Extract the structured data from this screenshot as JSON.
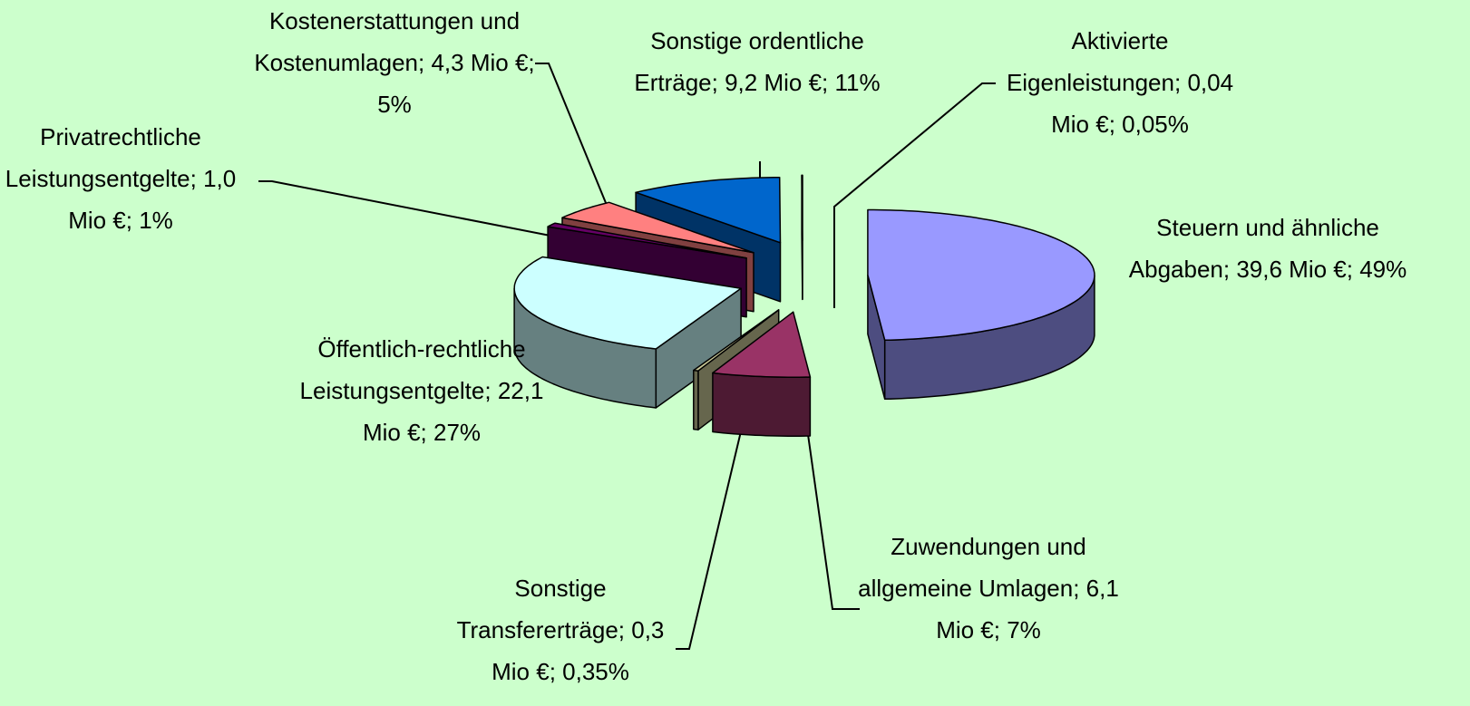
{
  "chart_data": {
    "type": "pie",
    "categories": [
      "Steuern und ähnliche Abgaben",
      "Zuwendungen und allgemeine Umlagen",
      "Sonstige Transfererträge",
      "Öffentlich-rechtliche Leistungsentgelte",
      "Privatrechtliche Leistungsentgelte",
      "Kostenerstattungen und Kostenumlagen",
      "Sonstige ordentliche Erträge",
      "Aktivierte Eigenleistungen"
    ],
    "values": [
      49,
      7,
      0.35,
      27,
      1,
      5,
      11,
      0.05
    ],
    "value_labels": [
      "49%",
      "7%",
      "0,35%",
      "27%",
      "1%",
      "5%",
      "11%",
      "0,05%"
    ],
    "amounts": [
      39.6,
      6.1,
      0.3,
      22.1,
      1.0,
      4.3,
      9.2,
      0.04
    ],
    "amount_labels": [
      "39,6 Mio €",
      "6,1 Mio €",
      "0,3 Mio €",
      "22,1 Mio €",
      "1,0 Mio €",
      "4,3 Mio €",
      "9,2 Mio €",
      "0,04 Mio €"
    ],
    "separator": "; ",
    "colors": [
      "#9999ff",
      "#993366",
      "#cccc99",
      "#ccffff",
      "#660066",
      "#ff8080",
      "#0066cc",
      "#ccccff"
    ]
  }
}
